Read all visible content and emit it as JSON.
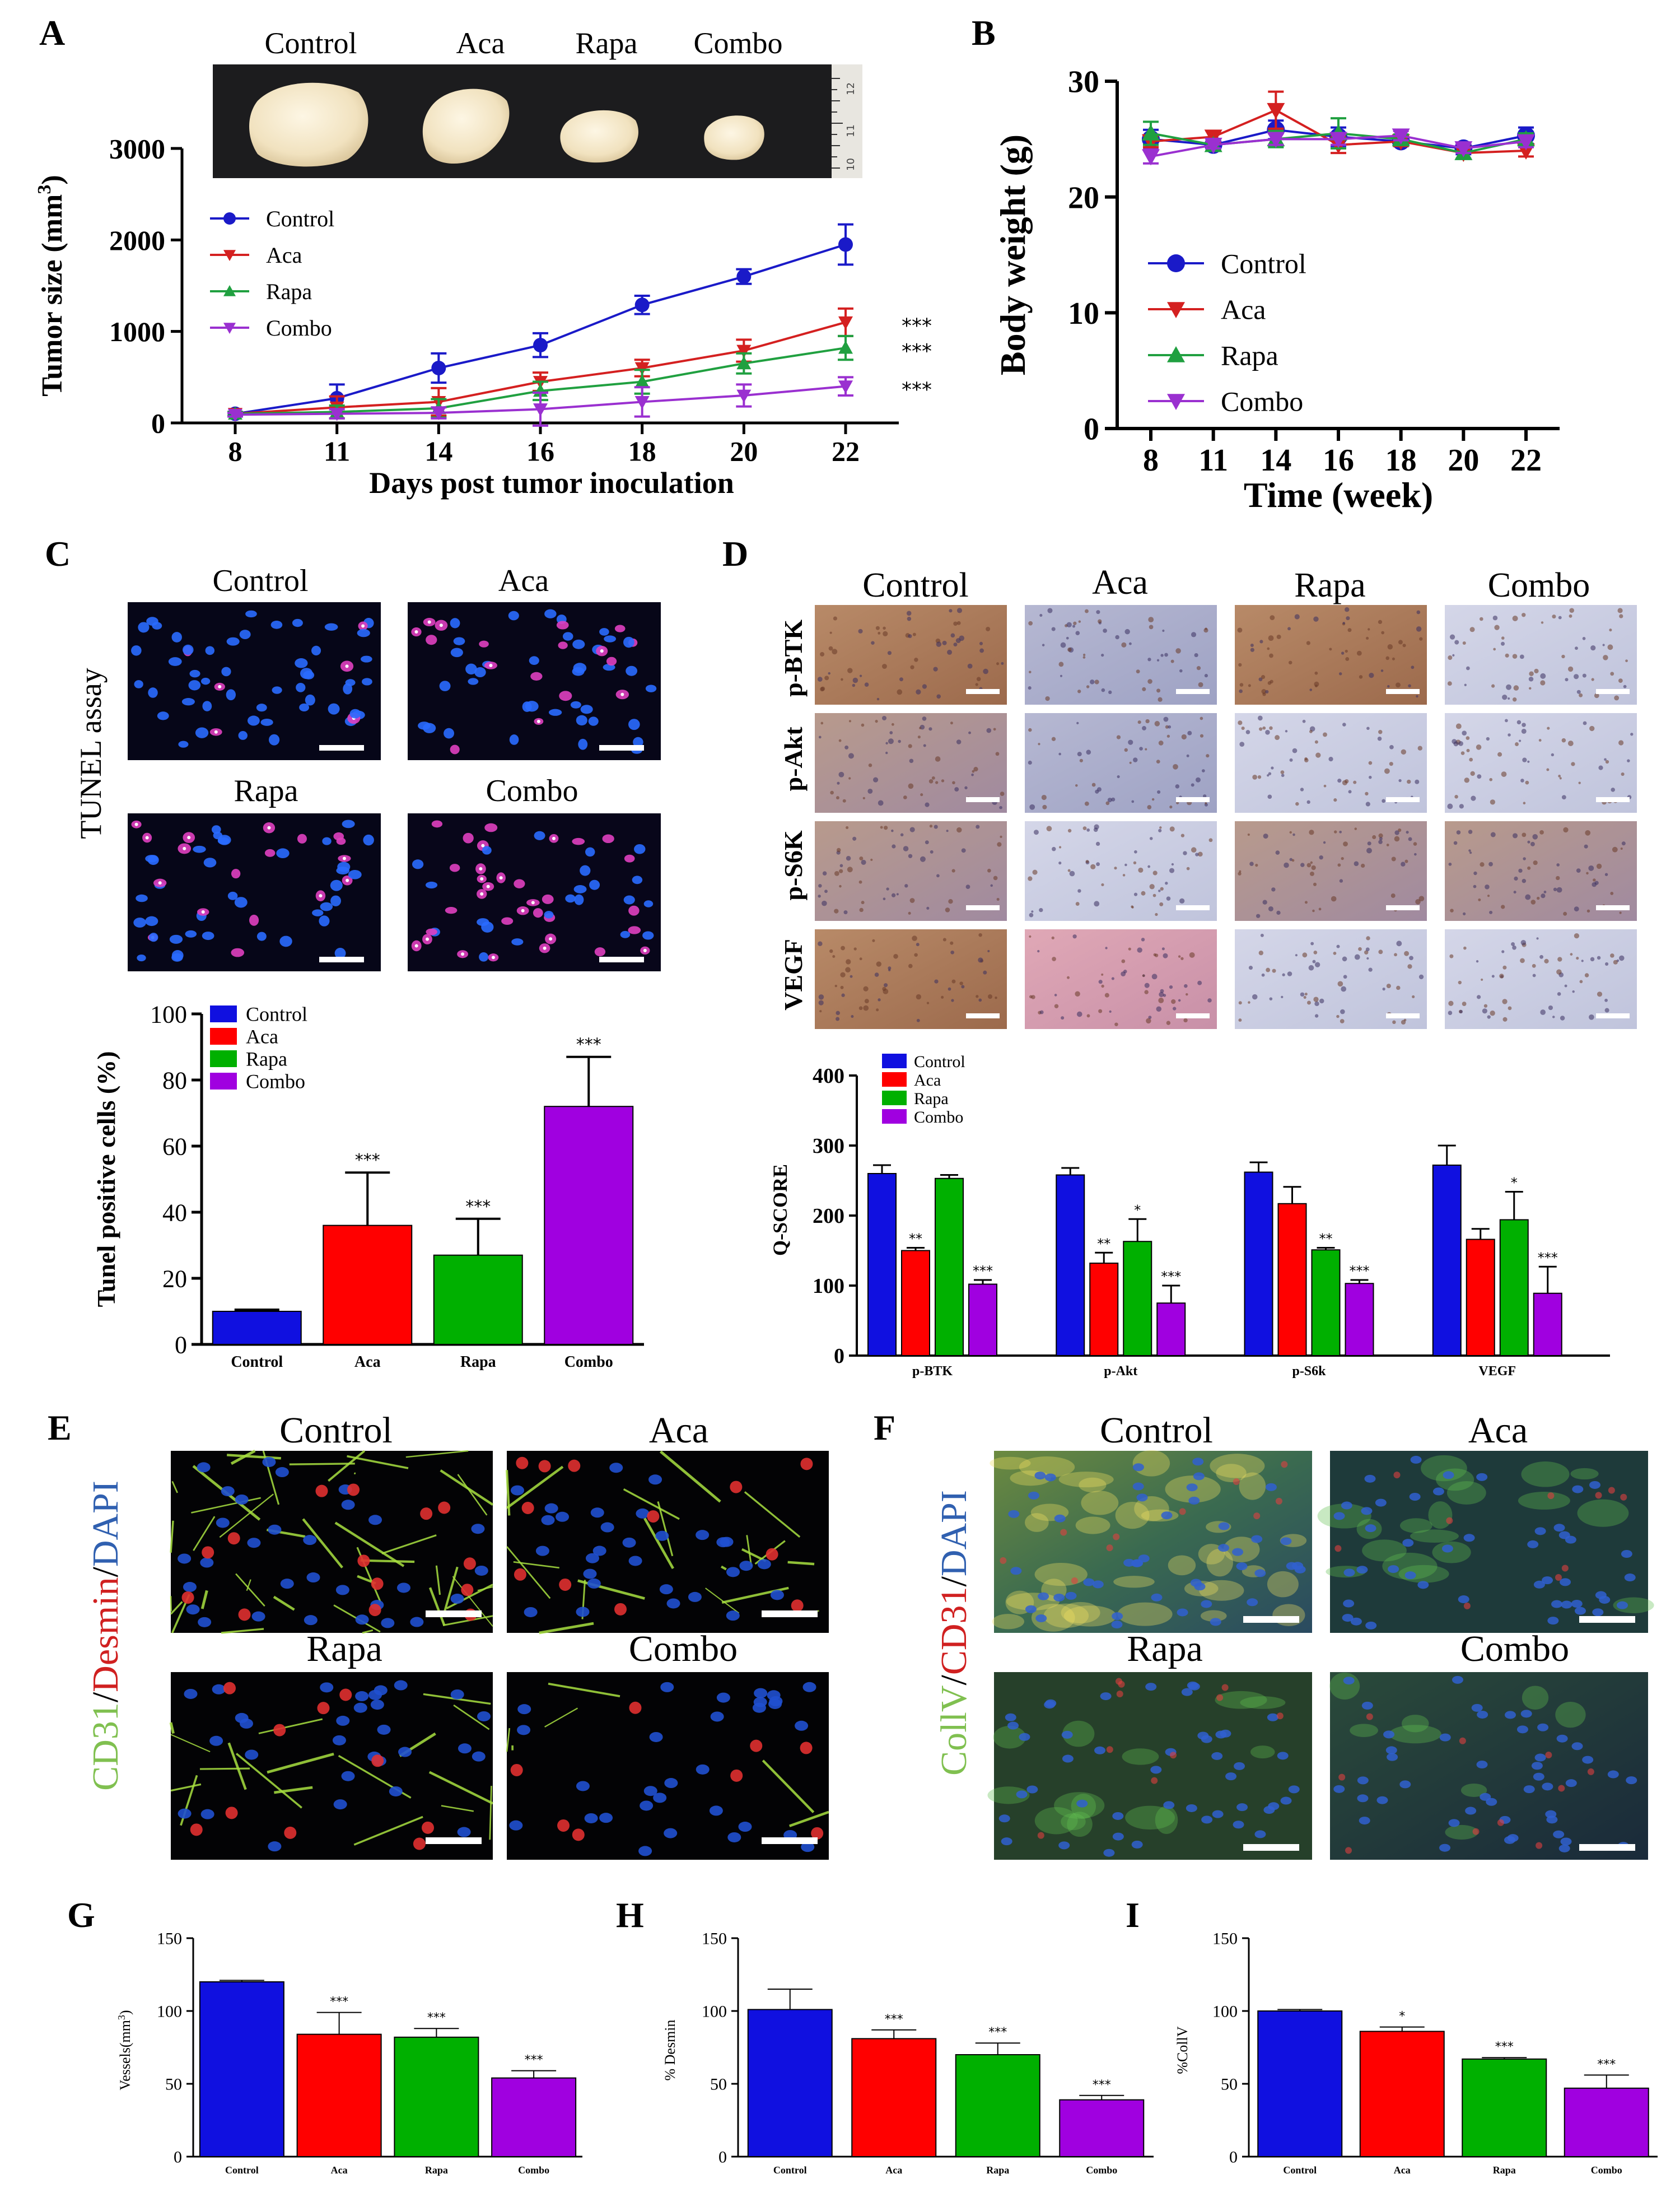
{
  "colors": {
    "control": "#1010e0",
    "aca": "#ff0000",
    "rapa": "#00b000",
    "combo": "#a000e0",
    "control_line": "#1a1ac8",
    "aca_line": "#d42020",
    "rapa_line": "#20a040",
    "combo_line": "#9a30d0"
  },
  "panels": {
    "A": {
      "letter": "A",
      "photo_labels": [
        "Control",
        "Aca",
        "Rapa",
        "Combo"
      ],
      "ruler_marks": [
        "10",
        "11",
        "12"
      ]
    },
    "B": {
      "letter": "B"
    },
    "C": {
      "letter": "C",
      "side_label": "TUNEL assay",
      "image_labels": [
        "Control",
        "Aca",
        "Rapa",
        "Combo"
      ]
    },
    "D": {
      "letter": "D",
      "column_labels": [
        "Control",
        "Aca",
        "Rapa",
        "Combo"
      ],
      "row_labels": [
        "p-BTK",
        "p-Akt",
        "p-S6K",
        "VEGF"
      ]
    },
    "E": {
      "letter": "E",
      "stain": {
        "part1": "CD31",
        "sep1": "/",
        "part2": "Desmin",
        "sep2": "/",
        "part3": "DAPI"
      },
      "image_labels": [
        "Control",
        "Aca",
        "Rapa",
        "Combo"
      ]
    },
    "F": {
      "letter": "F",
      "stain": {
        "part1": "CollV",
        "sep1": "/",
        "part2": "CD31",
        "sep2": "/",
        "part3": "DAPI"
      },
      "image_labels": [
        "Control",
        "Aca",
        "Rapa",
        "Combo"
      ]
    },
    "G": {
      "letter": "G"
    },
    "H": {
      "letter": "H"
    },
    "I": {
      "letter": "I"
    }
  },
  "chart_data": [
    {
      "id": "A",
      "type": "line",
      "xlabel": "Days post tumor inoculation",
      "ylabel_main": "Tumor size (mm",
      "ylabel_sup": "3",
      "ylabel_end": ")",
      "x": [
        8,
        11,
        14,
        16,
        18,
        20,
        22
      ],
      "ylim": [
        0,
        3000
      ],
      "yticks": [
        0,
        1000,
        2000,
        3000
      ],
      "legend": "upper-left",
      "series": [
        {
          "name": "Control",
          "values": [
            100,
            270,
            600,
            850,
            1290,
            1600,
            1950
          ],
          "errors": [
            20,
            150,
            160,
            130,
            100,
            80,
            220
          ],
          "marker": "circle"
        },
        {
          "name": "Aca",
          "values": [
            100,
            170,
            230,
            450,
            600,
            790,
            1100
          ],
          "errors": [
            20,
            120,
            150,
            100,
            90,
            120,
            150
          ],
          "marker": "triangle-down",
          "significance": "***"
        },
        {
          "name": "Rapa",
          "values": [
            100,
            120,
            160,
            350,
            450,
            650,
            820
          ],
          "errors": [
            20,
            70,
            100,
            100,
            130,
            110,
            130
          ],
          "marker": "triangle-up",
          "significance": "***"
        },
        {
          "name": "Combo",
          "values": [
            90,
            100,
            110,
            150,
            230,
            300,
            400
          ],
          "errors": [
            20,
            50,
            60,
            180,
            160,
            120,
            100
          ],
          "marker": "triangle-down",
          "significance": "***"
        }
      ]
    },
    {
      "id": "B",
      "type": "line",
      "xlabel": "Time (week)",
      "ylabel": "Body weight (g)",
      "x": [
        8,
        11,
        14,
        16,
        18,
        20,
        22
      ],
      "ylim": [
        0,
        30
      ],
      "yticks": [
        0,
        10,
        20,
        30
      ],
      "legend": "center-left",
      "series": [
        {
          "name": "Control",
          "values": [
            25.0,
            24.5,
            25.8,
            25.2,
            24.8,
            24.2,
            25.3
          ],
          "errors": [
            0.8,
            0.5,
            0.8,
            0.8,
            0.4,
            0.5,
            0.7
          ],
          "marker": "circle"
        },
        {
          "name": "Aca",
          "values": [
            24.8,
            25.2,
            27.5,
            24.5,
            24.8,
            23.8,
            24.0
          ],
          "errors": [
            0.5,
            0.5,
            1.6,
            0.7,
            0.4,
            0.5,
            0.5
          ],
          "marker": "triangle-down"
        },
        {
          "name": "Rapa",
          "values": [
            25.5,
            24.5,
            25.0,
            25.5,
            25.0,
            23.8,
            25.0
          ],
          "errors": [
            1.0,
            0.4,
            0.7,
            1.3,
            0.4,
            0.5,
            0.5
          ],
          "marker": "triangle-up"
        },
        {
          "name": "Combo",
          "values": [
            23.5,
            24.5,
            25.0,
            25.0,
            25.3,
            24.2,
            24.8
          ],
          "errors": [
            0.6,
            0.3,
            0.5,
            0.5,
            0.4,
            0.4,
            0.5
          ],
          "marker": "triangle-down"
        }
      ]
    },
    {
      "id": "C",
      "type": "bar",
      "ylabel": "Tunel positive cells (%)",
      "categories": [
        "Control",
        "Aca",
        "Rapa",
        "Combo"
      ],
      "values": [
        10,
        36,
        27,
        72
      ],
      "errors": [
        0.5,
        16,
        11,
        15
      ],
      "significance": [
        "",
        "***",
        "***",
        "***"
      ],
      "ylim": [
        0,
        100
      ],
      "yticks": [
        0,
        20,
        40,
        60,
        80,
        100
      ],
      "legend": [
        "Control",
        "Aca",
        "Rapa",
        "Combo"
      ]
    },
    {
      "id": "D",
      "type": "bar",
      "ylabel": "Q-SCORE",
      "categories": [
        "p-BTK",
        "p-Akt",
        "p-S6k",
        "VEGF"
      ],
      "ylim": [
        0,
        400
      ],
      "yticks": [
        0,
        100,
        200,
        300,
        400
      ],
      "series": [
        {
          "name": "Control",
          "values": [
            260,
            258,
            262,
            272
          ],
          "errors": [
            12,
            10,
            14,
            28
          ],
          "significance": [
            "",
            "",
            "",
            ""
          ]
        },
        {
          "name": "Aca",
          "values": [
            150,
            132,
            217,
            166
          ],
          "errors": [
            4,
            15,
            24,
            15
          ],
          "significance": [
            "**",
            "**",
            "",
            ""
          ]
        },
        {
          "name": "Rapa",
          "values": [
            253,
            163,
            151,
            194
          ],
          "errors": [
            5,
            32,
            3,
            40
          ],
          "significance": [
            "",
            "*",
            "**",
            "*"
          ]
        },
        {
          "name": "Combo",
          "values": [
            102,
            75,
            103,
            89
          ],
          "errors": [
            6,
            25,
            5,
            38
          ],
          "significance": [
            "***",
            "***",
            "***",
            "***"
          ]
        }
      ]
    },
    {
      "id": "G",
      "type": "bar",
      "ylabel_main": "Vessels(mm",
      "ylabel_sup": "3",
      "ylabel_end": ")",
      "categories": [
        "Control",
        "Aca",
        "Rapa",
        "Combo"
      ],
      "values": [
        120,
        84,
        82,
        54
      ],
      "errors": [
        1,
        15,
        6,
        5
      ],
      "significance": [
        "",
        "***",
        "***",
        "***"
      ],
      "ylim": [
        0,
        150
      ],
      "yticks": [
        0,
        50,
        100,
        150
      ]
    },
    {
      "id": "H",
      "type": "bar",
      "ylabel": "% Desmin",
      "categories": [
        "Control",
        "Aca",
        "Rapa",
        "Combo"
      ],
      "values": [
        101,
        81,
        70,
        39
      ],
      "errors": [
        14,
        6,
        8,
        3
      ],
      "significance": [
        "",
        "***",
        "***",
        "***"
      ],
      "ylim": [
        0,
        150
      ],
      "yticks": [
        0,
        50,
        100,
        150
      ]
    },
    {
      "id": "I",
      "type": "bar",
      "ylabel": "%CollV",
      "categories": [
        "Control",
        "Aca",
        "Rapa",
        "Combo"
      ],
      "values": [
        100,
        86,
        67,
        47
      ],
      "errors": [
        1,
        3,
        1,
        9
      ],
      "significance": [
        "",
        "*",
        "***",
        "***"
      ],
      "ylim": [
        0,
        150
      ],
      "yticks": [
        0,
        50,
        100,
        150
      ]
    }
  ]
}
